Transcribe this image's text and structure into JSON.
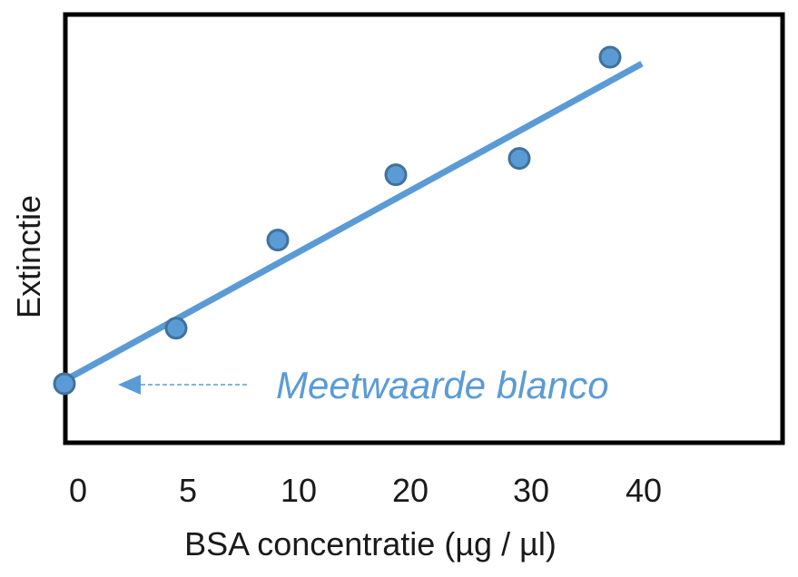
{
  "chart_data": {
    "type": "scatter",
    "title": "",
    "xlabel": "BSA concentratie (µg / µl)",
    "ylabel": "Extinctie",
    "x_tick_labels": [
      "0",
      "5",
      "10",
      "20",
      "30",
      "40"
    ],
    "points": [
      {
        "x": 0,
        "y": 0
      },
      {
        "x": 5,
        "y": 0.17
      },
      {
        "x": 10,
        "y": 0.44
      },
      {
        "x": 20,
        "y": 0.64
      },
      {
        "x": 30,
        "y": 0.69
      },
      {
        "x": 40,
        "y": 1.0
      }
    ],
    "trendline": {
      "from": {
        "x": 0,
        "y": 0.01
      },
      "to": {
        "x": 40,
        "y": 0.98
      }
    },
    "annotation": {
      "text": "Meetwaarde blanco",
      "points_to": {
        "x": 0,
        "y": 0
      }
    },
    "grid": false,
    "colors": {
      "marker_fill": "#5b9bd5",
      "marker_edge": "#41719c",
      "line": "#5b9bd5",
      "frame": "#000000"
    }
  }
}
